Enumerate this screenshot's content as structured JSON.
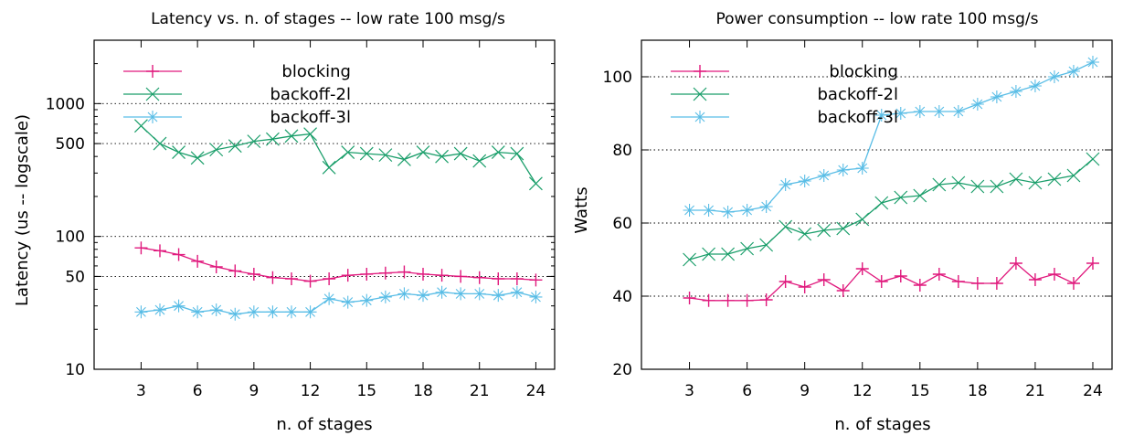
{
  "colors": {
    "blocking": "#e0197d",
    "backoff-2l": "#1a9e6a",
    "backoff-3l": "#59bde6"
  },
  "chart_data": [
    {
      "type": "line",
      "title": "Latency vs. n. of stages -- low rate 100 msg/s",
      "xlabel": "n. of stages",
      "ylabel": "Latency (us -- logscale)",
      "yscale": "log",
      "xlim": [
        0.5,
        25
      ],
      "ylim": [
        10,
        3000
      ],
      "xticks": [
        3,
        6,
        9,
        12,
        15,
        18,
        21,
        24
      ],
      "yticks": [
        10,
        50,
        100,
        500,
        1000
      ],
      "grid": true,
      "legend_position": "top-left",
      "x": [
        3,
        4,
        5,
        6,
        7,
        8,
        9,
        10,
        11,
        12,
        13,
        14,
        15,
        16,
        17,
        18,
        19,
        20,
        21,
        22,
        23,
        24
      ],
      "series": [
        {
          "name": "blocking",
          "marker": "plus",
          "values": [
            82,
            78,
            73,
            65,
            59,
            55,
            52,
            49,
            48,
            46,
            48,
            51,
            52,
            53,
            54,
            52,
            51,
            50,
            49,
            48,
            48,
            47
          ]
        },
        {
          "name": "backoff-2l",
          "marker": "x",
          "values": [
            680,
            500,
            430,
            390,
            450,
            480,
            520,
            540,
            570,
            590,
            330,
            430,
            420,
            410,
            380,
            430,
            400,
            420,
            370,
            430,
            420,
            250
          ]
        },
        {
          "name": "backoff-3l",
          "marker": "star",
          "values": [
            27,
            28,
            30,
            27,
            28,
            26,
            27,
            27,
            27,
            27,
            34,
            32,
            33,
            35,
            37,
            36,
            38,
            37,
            37,
            36,
            38,
            35
          ]
        }
      ]
    },
    {
      "type": "line",
      "title": "Power consumption -- low rate 100 msg/s",
      "xlabel": "n. of stages",
      "ylabel": "Watts",
      "yscale": "linear",
      "xlim": [
        0.5,
        25
      ],
      "ylim": [
        20,
        110
      ],
      "xticks": [
        3,
        6,
        9,
        12,
        15,
        18,
        21,
        24
      ],
      "yticks": [
        20,
        40,
        60,
        80,
        100
      ],
      "grid": true,
      "legend_position": "top-left",
      "x": [
        3,
        4,
        5,
        6,
        7,
        8,
        9,
        10,
        11,
        12,
        13,
        14,
        15,
        16,
        17,
        18,
        19,
        20,
        21,
        22,
        23,
        24
      ],
      "series": [
        {
          "name": "blocking",
          "marker": "plus",
          "values": [
            39.5,
            38.8,
            38.8,
            38.8,
            39,
            44,
            42.5,
            44.5,
            41.5,
            47.5,
            44,
            45.5,
            43,
            46,
            44,
            43.5,
            43.5,
            49,
            44.5,
            46,
            43.5,
            49
          ]
        },
        {
          "name": "backoff-2l",
          "marker": "x",
          "values": [
            50,
            51.5,
            51.5,
            53,
            54,
            59,
            57,
            58,
            58.5,
            61,
            65.5,
            67,
            67.5,
            70.5,
            71,
            70,
            70,
            72,
            71,
            72,
            73,
            77.5
          ]
        },
        {
          "name": "backoff-3l",
          "marker": "star",
          "values": [
            63.5,
            63.5,
            63,
            63.5,
            64.5,
            70.5,
            71.5,
            73,
            74.5,
            75,
            89.5,
            90,
            90.5,
            90.5,
            90.5,
            92.5,
            94.5,
            96,
            97.5,
            100,
            101.5,
            104
          ]
        }
      ]
    }
  ]
}
